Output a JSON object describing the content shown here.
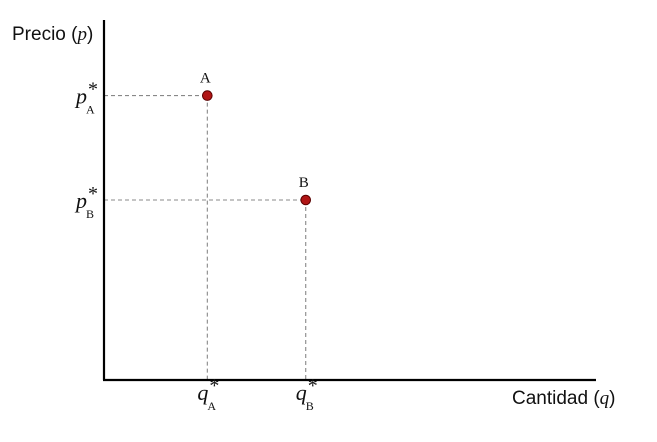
{
  "chart_data": {
    "type": "scatter",
    "title": "",
    "ylabel": {
      "text": "Precio",
      "symbol": "p"
    },
    "xlabel": {
      "text": "Cantidad",
      "symbol": "q"
    },
    "xlim": [
      0,
      100
    ],
    "ylim": [
      0,
      100
    ],
    "grid": false,
    "points": [
      {
        "label": "A",
        "x": 21,
        "y": 79,
        "color": "#b01515"
      },
      {
        "label": "B",
        "x": 41,
        "y": 50,
        "color": "#b01515"
      }
    ],
    "x_ticks": [
      {
        "main": "q",
        "sup": "*",
        "sub": "A",
        "x": 21
      },
      {
        "main": "q",
        "sup": "*",
        "sub": "B",
        "x": 41
      }
    ],
    "y_ticks": [
      {
        "main": "p",
        "sup": "*",
        "sub": "A",
        "y": 79
      },
      {
        "main": "p",
        "sup": "*",
        "sub": "B",
        "y": 50
      }
    ]
  }
}
